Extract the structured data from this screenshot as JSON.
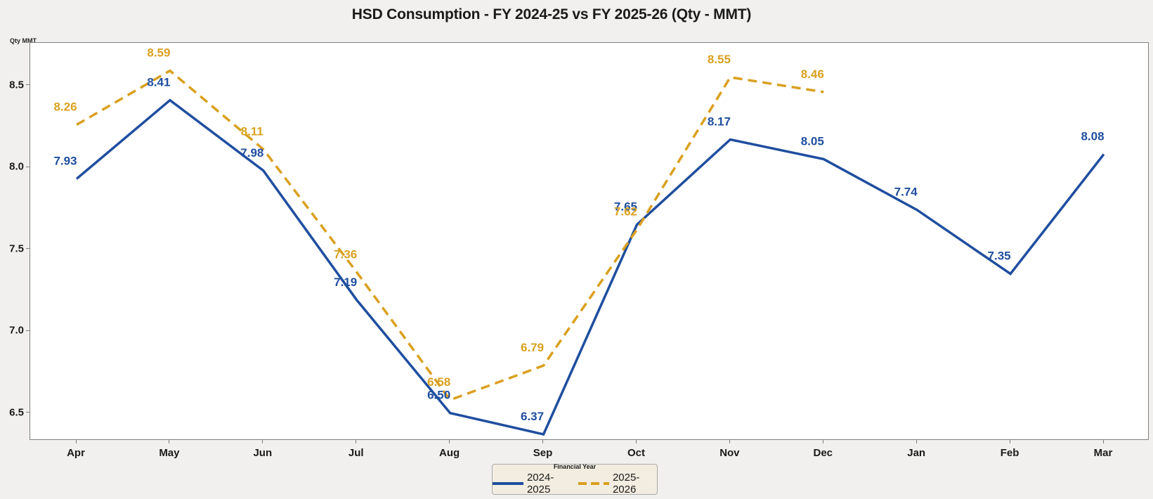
{
  "title": "HSD Consumption - FY 2024-25 vs FY 2025-26 (Qty - MMT)",
  "y_axis_unit_label": "Qty MMT",
  "legend": {
    "title": "Financial Year",
    "items": [
      {
        "label": "2024-2025",
        "color": "#1f4e9f",
        "style": "solid"
      },
      {
        "label": "2025-2026",
        "color": "#d9a01f",
        "style": "dashed"
      }
    ]
  },
  "colors": {
    "series_2024_25": "#1f4e9f",
    "series_2025_26": "#d9a01f",
    "page_background": "#f1f0ee",
    "plot_background": "#ffffff",
    "legend_background": "#f3ede1"
  },
  "chart_data": {
    "type": "line",
    "title": "HSD Consumption - FY 2024-25 vs FY 2025-26 (Qty - MMT)",
    "xlabel": "",
    "ylabel": "Qty MMT",
    "categories": [
      "Apr",
      "May",
      "Jun",
      "Jul",
      "Aug",
      "Sep",
      "Oct",
      "Nov",
      "Dec",
      "Jan",
      "Feb",
      "Mar"
    ],
    "series": [
      {
        "name": "2024-2025",
        "color": "#1f4e9f",
        "dash": "solid",
        "values": [
          7.93,
          8.41,
          7.98,
          7.19,
          6.5,
          6.37,
          7.65,
          8.17,
          8.05,
          7.74,
          7.35,
          8.08
        ]
      },
      {
        "name": "2025-2026",
        "color": "#d9a01f",
        "dash": "dashed",
        "values": [
          8.26,
          8.59,
          8.11,
          7.36,
          6.58,
          6.79,
          7.62,
          8.55,
          8.46,
          null,
          null,
          null
        ]
      }
    ],
    "yticks": [
      6.5,
      7.0,
      7.5,
      8.0,
      8.5
    ],
    "ylim": [
      6.34,
      8.76
    ],
    "grid": false,
    "data_labels": true,
    "data_label_decimals": 2,
    "legend_position": "bottom-center"
  }
}
